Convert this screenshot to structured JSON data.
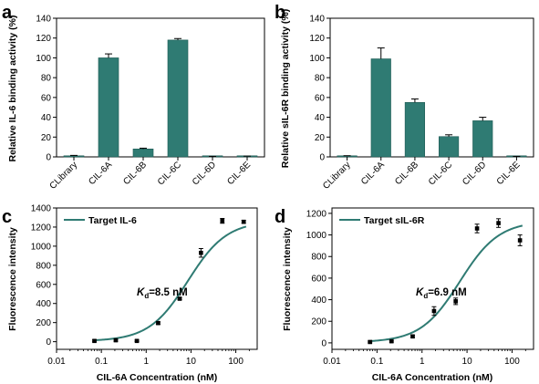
{
  "chart_data": [
    {
      "panel": "a",
      "type": "bar",
      "ylabel": "Relative IL-6 binding activity (%)",
      "xlabel": "",
      "categories": [
        "CLibrary",
        "CIL-6A",
        "CIL-6B",
        "CIL-6C",
        "CIL-6D",
        "CIL-6E"
      ],
      "values": [
        1,
        100,
        8,
        118,
        0.3,
        0.5
      ],
      "errors": [
        0.5,
        4,
        0.8,
        1.5,
        0.2,
        0.3
      ],
      "ylim": [
        0,
        140
      ],
      "yticks": [
        0,
        20,
        40,
        60,
        80,
        100,
        120,
        140
      ],
      "bar_color": "#2f7b73"
    },
    {
      "panel": "b",
      "type": "bar",
      "ylabel": "Relative sIL-6R binding activity (%)",
      "xlabel": "",
      "categories": [
        "CLibrary",
        "CIL-6A",
        "CIL-6B",
        "CIL-6C",
        "CIL-6D",
        "CIL-6E"
      ],
      "values": [
        0.8,
        99,
        55,
        20.5,
        36.5,
        0.3
      ],
      "errors": [
        0.4,
        11,
        3.5,
        1.8,
        3.5,
        0.2
      ],
      "ylim": [
        0,
        140
      ],
      "yticks": [
        0,
        20,
        40,
        60,
        80,
        100,
        120,
        140
      ],
      "bar_color": "#2f7b73"
    },
    {
      "panel": "c",
      "type": "scatter",
      "xscale": "log",
      "xlabel": "CIL-6A Concentration (nM)",
      "ylabel": "Fluorescence intensity",
      "xlim": [
        0.01,
        300
      ],
      "ylim": [
        -80,
        1400
      ],
      "xticks": [
        0.01,
        0.1,
        1,
        10,
        100
      ],
      "xtick_labels": [
        "0.01",
        "0.1",
        "1",
        "10",
        "100"
      ],
      "yticks": [
        0,
        200,
        400,
        600,
        800,
        1000,
        1200,
        1400
      ],
      "series": [
        {
          "name": "Target IL-6",
          "x": [
            0.07,
            0.21,
            0.62,
            1.85,
            5.6,
            16.7,
            50,
            150
          ],
          "y": [
            8,
            15,
            8,
            195,
            450,
            930,
            1265,
            1255
          ],
          "yerr": [
            10,
            10,
            8,
            12,
            10,
            45,
            25,
            15
          ],
          "fit": {
            "kd": 8.5,
            "bottom": 5,
            "top": 1265
          }
        }
      ],
      "annotation": {
        "symbol": "K",
        "subscript": "d",
        "text": "=8.5 nM"
      },
      "color": "#2f7b73"
    },
    {
      "panel": "d",
      "type": "scatter",
      "xscale": "log",
      "xlabel": "CIL-6A Concentration (nM)",
      "ylabel": "Fluorescence intensity",
      "xlim": [
        0.01,
        300
      ],
      "ylim": [
        -60,
        1250
      ],
      "xticks": [
        0.01,
        0.1,
        1,
        10,
        100
      ],
      "xtick_labels": [
        "0.01",
        "0.1",
        "1",
        "10",
        "100"
      ],
      "yticks": [
        0,
        200,
        400,
        600,
        800,
        1000,
        1200
      ],
      "series": [
        {
          "name": "Target sIL-6R",
          "x": [
            0.07,
            0.21,
            0.62,
            1.85,
            5.6,
            16.7,
            50,
            150
          ],
          "y": [
            8,
            15,
            60,
            295,
            385,
            1060,
            1110,
            950
          ],
          "yerr": [
            8,
            8,
            10,
            40,
            30,
            40,
            40,
            50
          ],
          "fit": {
            "kd": 6.9,
            "bottom": 5,
            "top": 1130
          }
        }
      ],
      "annotation": {
        "symbol": "K",
        "subscript": "d",
        "text": "=6.9 nM"
      },
      "color": "#2f7b73"
    }
  ]
}
